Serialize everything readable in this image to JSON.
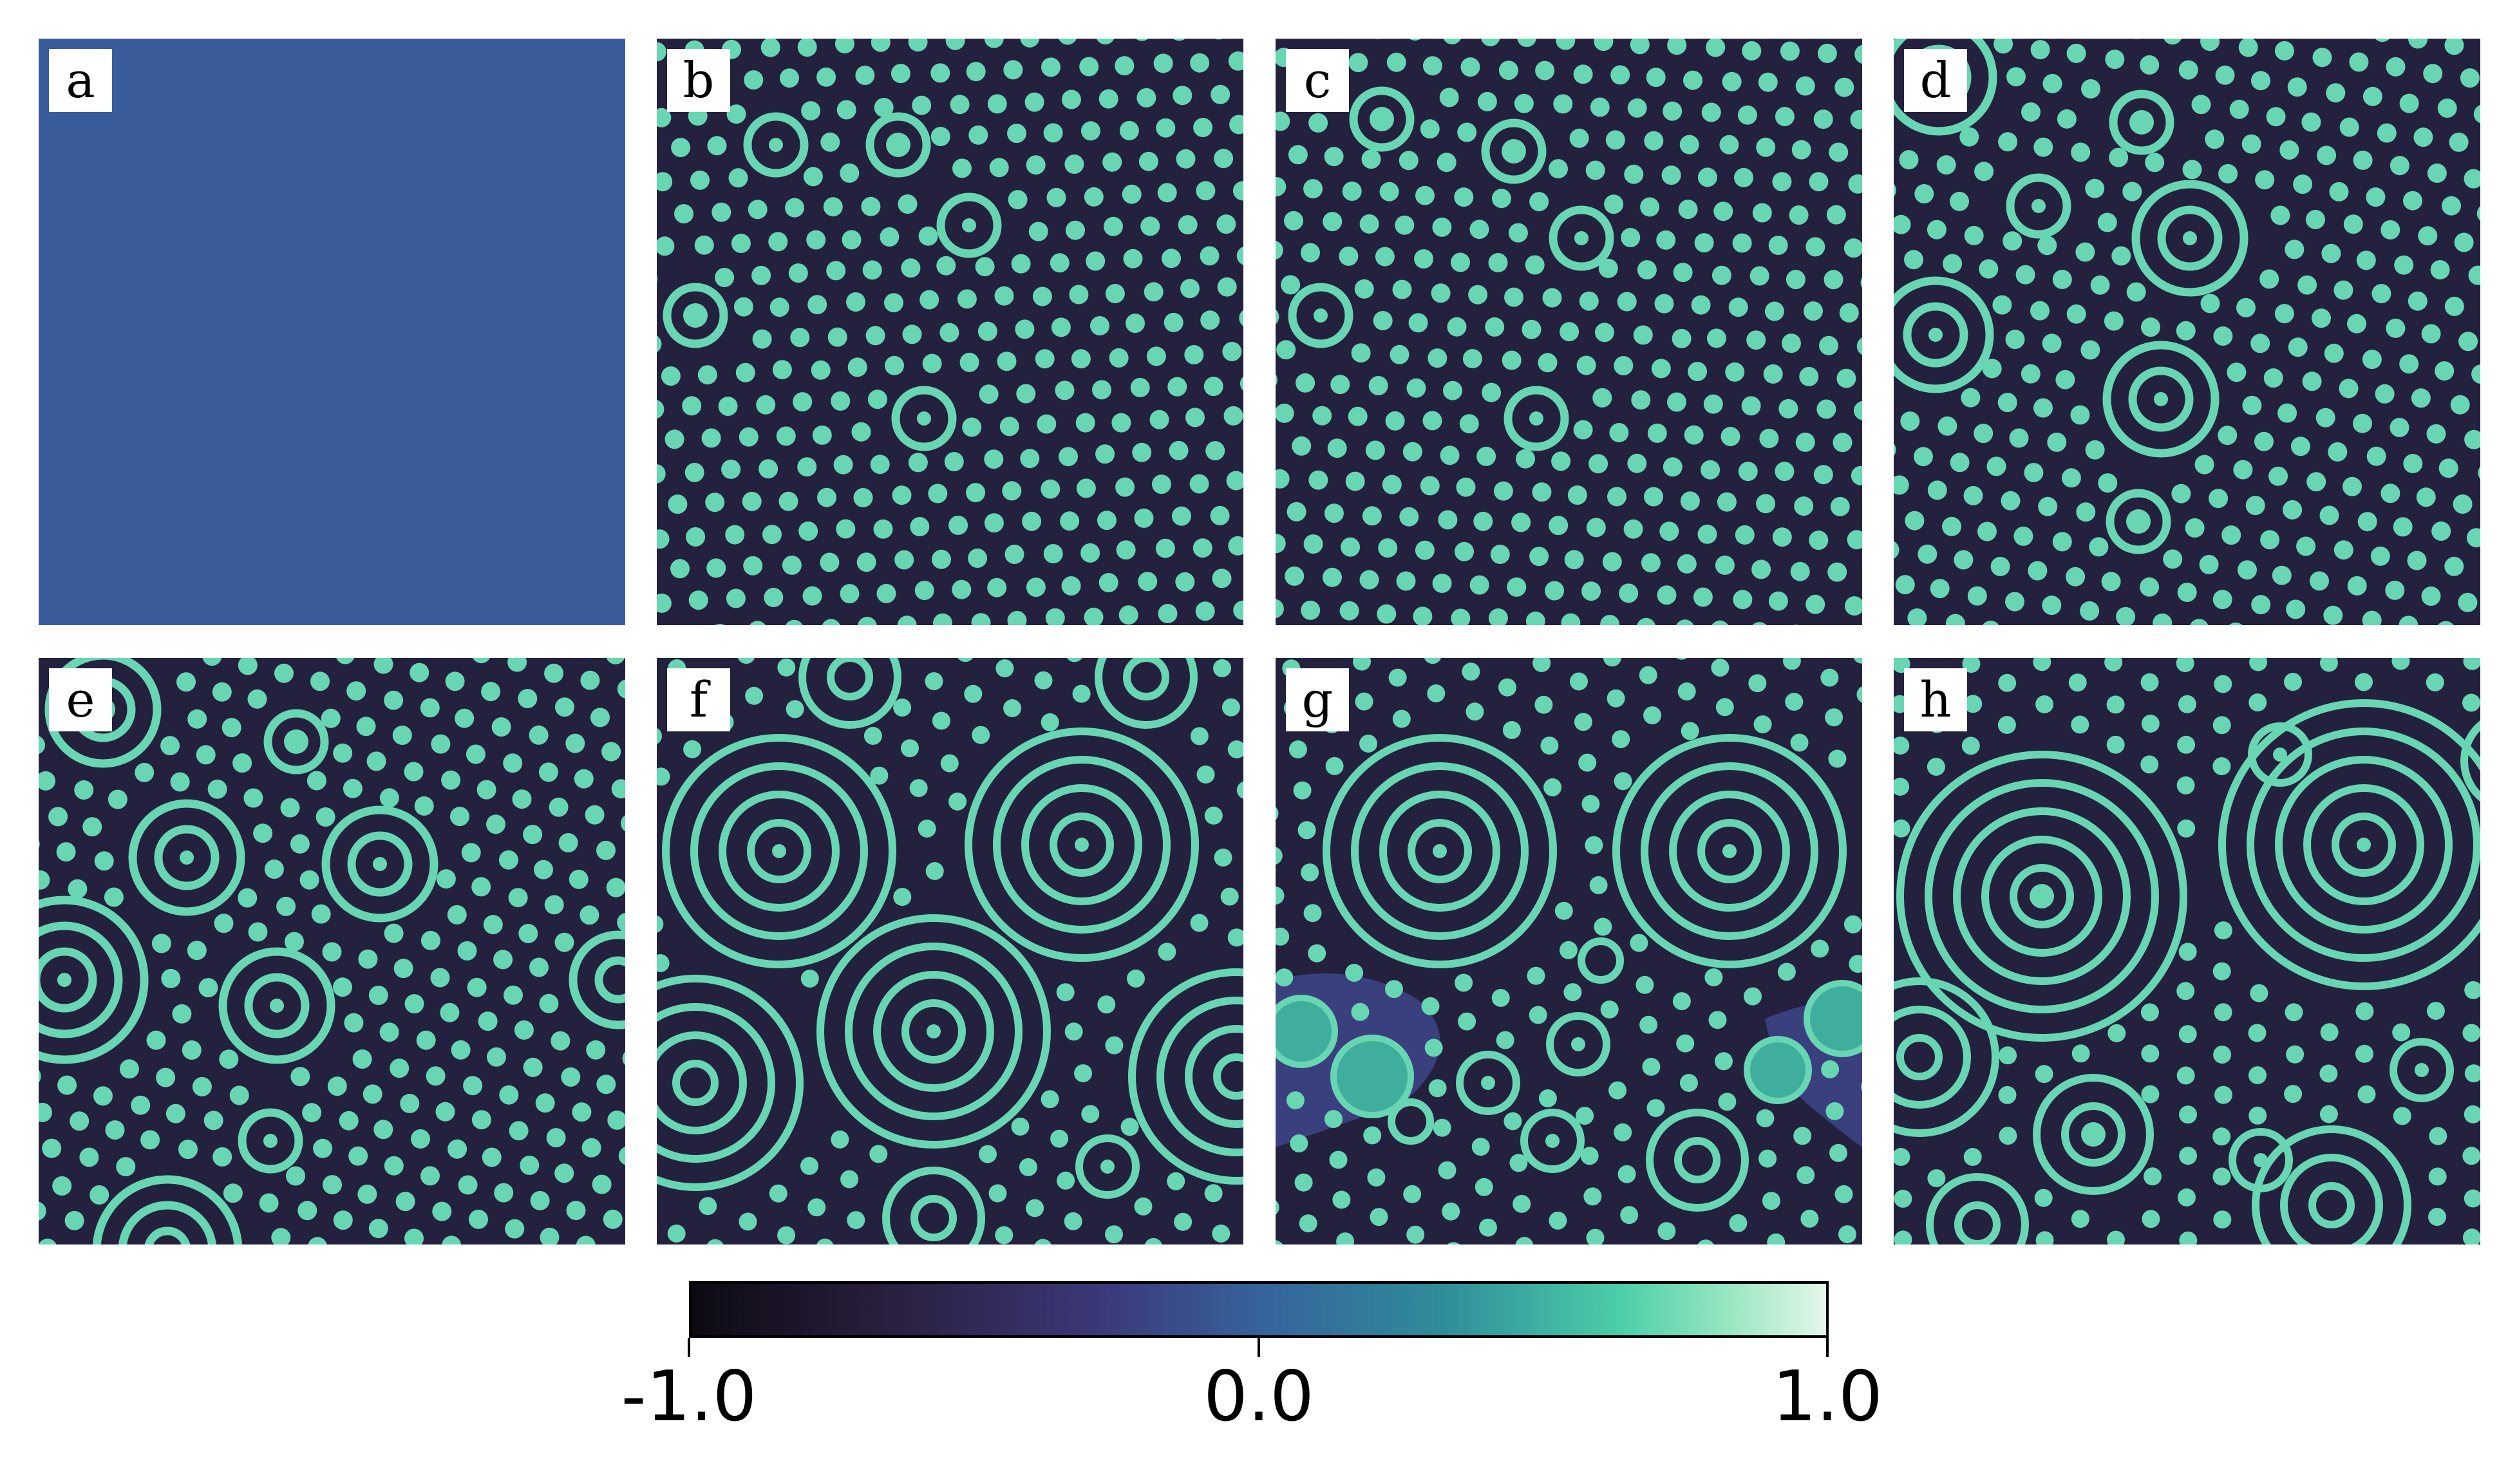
{
  "panels": [
    {
      "label": "a",
      "pattern": "uniform"
    },
    {
      "label": "b",
      "pattern": "spots-with-few-rings"
    },
    {
      "label": "c",
      "pattern": "spots-with-few-rings"
    },
    {
      "label": "d",
      "pattern": "spots-with-more-rings"
    },
    {
      "label": "e",
      "pattern": "rings-and-spots"
    },
    {
      "label": "f",
      "pattern": "large-concentric-rings"
    },
    {
      "label": "g",
      "pattern": "rings-spots-and-blobs"
    },
    {
      "label": "h",
      "pattern": "large-concentric-rings"
    }
  ],
  "colorbar": {
    "colormap": "mako",
    "min": -1.0,
    "max": 1.0,
    "ticks": [
      "-1.0",
      "0.0",
      "1.0"
    ]
  },
  "colors": {
    "background_dark": "#24213f",
    "uniform": "#3a5c9a",
    "feature": "#68d6b2",
    "feature_center": "#3fae9c"
  }
}
